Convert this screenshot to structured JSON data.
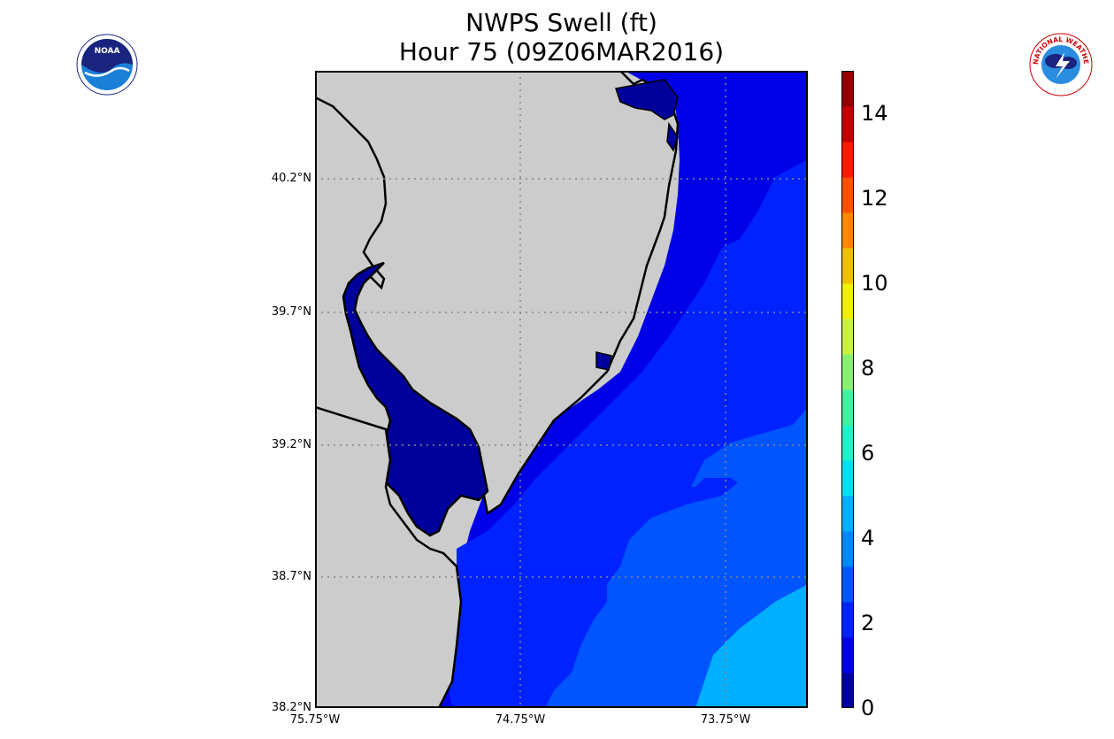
{
  "title": {
    "line1": "NWPS Swell (ft)",
    "line2": "Hour 75 (09Z06MAR2016)"
  },
  "logos": {
    "left": {
      "icon": "noaa-logo",
      "text": "NOAA"
    },
    "right": {
      "icon": "nws-logo",
      "text": "NATIONAL WEATHER SERVICE"
    }
  },
  "map": {
    "land_color": "#cccccc",
    "lat_labels": [
      "40.2°N",
      "39.7°N",
      "39.2°N",
      "38.7°N",
      "38.2°N"
    ],
    "lon_labels": [
      "75.75°W",
      "74.75°W",
      "73.75°W"
    ]
  },
  "colorbar": {
    "ticks": [
      "0",
      "2",
      "4",
      "6",
      "8",
      "10",
      "12",
      "14"
    ],
    "range_ft": [
      0,
      15
    ],
    "colors": [
      "#00009c",
      "#0000e6",
      "#0022ff",
      "#0055ff",
      "#0088ff",
      "#00b0ff",
      "#00e0f0",
      "#22f0c8",
      "#44f0a0",
      "#88f070",
      "#c8f044",
      "#f0f000",
      "#f0c000",
      "#ff8800",
      "#ff5000",
      "#ff1800",
      "#c00000",
      "#900000"
    ]
  }
}
